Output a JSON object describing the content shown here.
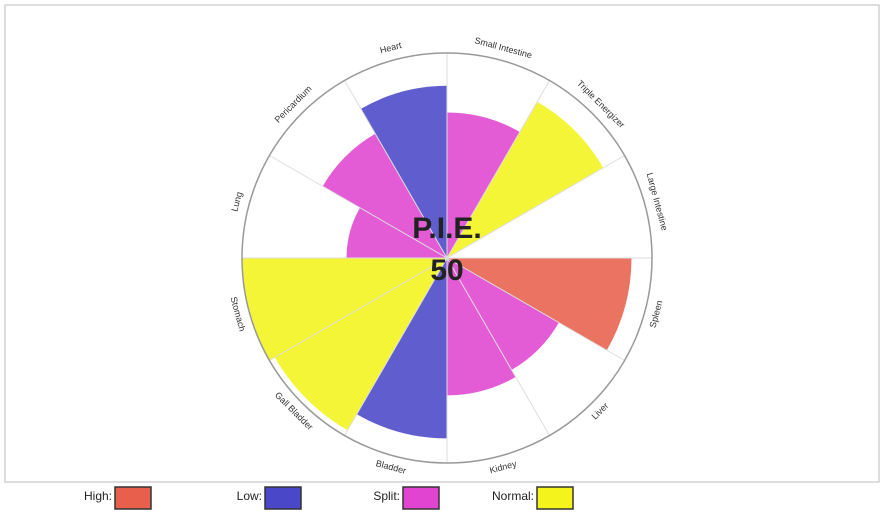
{
  "chart_data": {
    "type": "polar-area",
    "center_label": "P.I.E.",
    "center_value": 50,
    "categories": [
      "Small Intestine",
      "Triple Energizer",
      "Large Intestine",
      "Spleen",
      "Liver",
      "Kidney",
      "Bladder",
      "Gall Bladder",
      "Stomach",
      "Lung",
      "Pericardium",
      "Heart"
    ],
    "rlim": [
      0,
      100
    ],
    "series": [
      {
        "name": "High:",
        "color": "#e8604c",
        "values": [
          null,
          null,
          null,
          90,
          null,
          null,
          null,
          null,
          null,
          null,
          null,
          null
        ]
      },
      {
        "name": "Low:",
        "color": "#4a48c8",
        "values": [
          null,
          null,
          null,
          null,
          null,
          null,
          88,
          null,
          null,
          null,
          null,
          84
        ]
      },
      {
        "name": "Split:",
        "color": "#e044d0",
        "values": [
          71,
          null,
          null,
          null,
          63,
          67,
          null,
          null,
          null,
          49,
          70,
          null
        ]
      },
      {
        "name": "Normal:",
        "color": "#f4f41c",
        "values": [
          null,
          88,
          null,
          null,
          null,
          null,
          null,
          97,
          100,
          null,
          null,
          null
        ]
      }
    ]
  }
}
